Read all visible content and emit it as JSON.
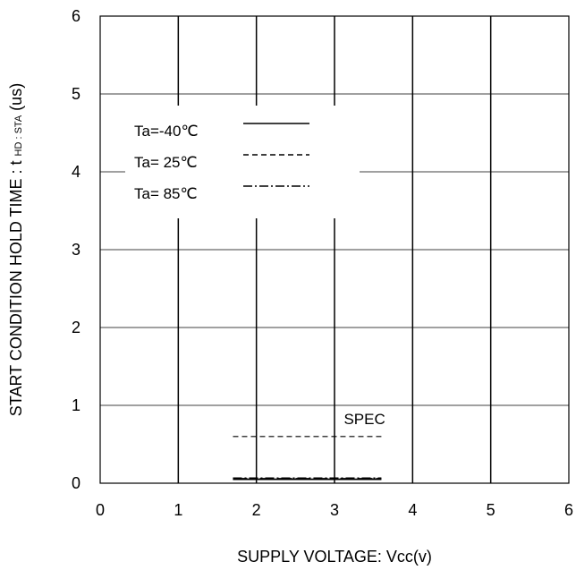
{
  "chart_data": {
    "type": "line",
    "xlabel": "SUPPLY VOLTAGE: Vcc(v)",
    "ylabel": {
      "main": "START CONDITION HOLD TIME : t",
      "subscript": "HD : STA",
      "unit": "(us)"
    },
    "xlim": [
      0,
      6
    ],
    "ylim": [
      0,
      6
    ],
    "x_ticks": [
      "0",
      "1",
      "2",
      "3",
      "4",
      "5",
      "6"
    ],
    "y_ticks": [
      "0",
      "1",
      "2",
      "3",
      "4",
      "5",
      "6"
    ],
    "grid": true,
    "legend_position": "top-left",
    "series": [
      {
        "name": "Ta=-40℃",
        "style": "solid",
        "x": [
          1.7,
          3.6
        ],
        "y": [
          0.05,
          0.05
        ]
      },
      {
        "name": "Ta= 25℃",
        "style": "dashed",
        "x": [
          1.7,
          3.6
        ],
        "y": [
          0.05,
          0.05
        ]
      },
      {
        "name": "Ta= 85℃",
        "style": "dashdot",
        "x": [
          1.7,
          3.6
        ],
        "y": [
          0.05,
          0.05
        ]
      }
    ],
    "annotations": [
      {
        "text": "SPEC",
        "style": "dashed",
        "x": [
          1.7,
          3.6
        ],
        "y": [
          0.6,
          0.6
        ]
      }
    ]
  }
}
